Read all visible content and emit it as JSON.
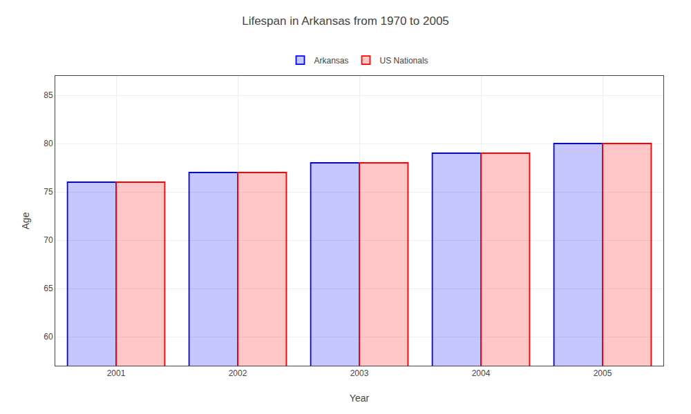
{
  "chart_data": {
    "type": "bar",
    "title": "Lifespan in Arkansas from 1970 to 2005",
    "xlabel": "Year",
    "ylabel": "Age",
    "categories": [
      "2001",
      "2002",
      "2003",
      "2004",
      "2005"
    ],
    "series": [
      {
        "name": "Arkansas",
        "color": "#0000ff",
        "values": [
          76,
          77,
          78,
          79,
          80
        ]
      },
      {
        "name": "US Nationals",
        "color": "#ff0000",
        "values": [
          76,
          77,
          78,
          79,
          80
        ]
      }
    ],
    "ylim": [
      57,
      87
    ],
    "yticks": [
      60,
      65,
      70,
      75,
      80,
      85
    ],
    "grid": true,
    "legend": "top"
  }
}
